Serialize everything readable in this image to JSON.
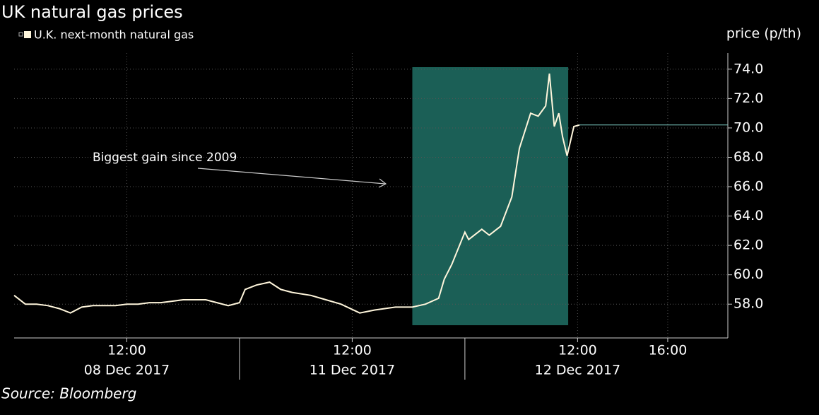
{
  "chart_data": {
    "type": "line",
    "title": "UK natural gas prices",
    "y_label": "price (p/th)",
    "source": "Source: Bloomberg",
    "annotation": "Biggest gain since 2009",
    "days": [
      "08 Dec 2017",
      "11 Dec 2017",
      "12 Dec 2017"
    ],
    "xlim": [
      "08 Dec 2017 07:00",
      "12 Dec 2017 18:40"
    ],
    "xticks": [
      {
        "value": "08 Dec 2017 12:00",
        "label": "12:00"
      },
      {
        "value": "11 Dec 2017 12:00",
        "label": "12:00"
      },
      {
        "value": "12 Dec 2017 12:00",
        "label": "12:00"
      },
      {
        "value": "12 Dec 2017 16:00",
        "label": "16:00"
      }
    ],
    "ylim": [
      55.7,
      75.1
    ],
    "yticks": [
      {
        "value": 58,
        "label": "58.0"
      },
      {
        "value": 60,
        "label": "60.0"
      },
      {
        "value": 62,
        "label": "62.0"
      },
      {
        "value": 64,
        "label": "64.0"
      },
      {
        "value": 66,
        "label": "66.0"
      },
      {
        "value": 68,
        "label": "68.0"
      },
      {
        "value": 70,
        "label": "70.0"
      },
      {
        "value": 72,
        "label": "72.0"
      },
      {
        "value": 74,
        "label": "74.0"
      }
    ],
    "grid": true,
    "highlight": {
      "x": [
        "11 Dec 2017 14:40",
        "12 Dec 2017 11:35"
      ],
      "color": "#1b5f56"
    },
    "series": [
      {
        "name": "U.K. next-month natural gas",
        "color": "#fff6dc",
        "x": [
          "08 Dec 2017 07:00",
          "08 Dec 2017 07:30",
          "08 Dec 2017 08:00",
          "08 Dec 2017 08:30",
          "08 Dec 2017 09:00",
          "08 Dec 2017 09:30",
          "08 Dec 2017 10:00",
          "08 Dec 2017 10:30",
          "08 Dec 2017 11:00",
          "08 Dec 2017 11:30",
          "08 Dec 2017 12:00",
          "08 Dec 2017 12:30",
          "08 Dec 2017 13:00",
          "08 Dec 2017 13:30",
          "08 Dec 2017 14:00",
          "08 Dec 2017 14:30",
          "08 Dec 2017 15:00",
          "08 Dec 2017 15:30",
          "08 Dec 2017 16:00",
          "08 Dec 2017 16:30",
          "08 Dec 2017 17:00",
          "11 Dec 2017 07:15",
          "11 Dec 2017 07:45",
          "11 Dec 2017 08:20",
          "11 Dec 2017 08:50",
          "11 Dec 2017 09:20",
          "11 Dec 2017 10:10",
          "11 Dec 2017 10:50",
          "11 Dec 2017 11:30",
          "11 Dec 2017 12:20",
          "11 Dec 2017 13:00",
          "11 Dec 2017 13:55",
          "11 Dec 2017 14:40",
          "11 Dec 2017 15:15",
          "11 Dec 2017 15:50",
          "11 Dec 2017 16:05",
          "11 Dec 2017 16:25",
          "11 Dec 2017 17:00",
          "12 Dec 2017 07:10",
          "12 Dec 2017 07:45",
          "12 Dec 2017 08:05",
          "12 Dec 2017 08:35",
          "12 Dec 2017 09:05",
          "12 Dec 2017 09:25",
          "12 Dec 2017 09:55",
          "12 Dec 2017 10:15",
          "12 Dec 2017 10:35",
          "12 Dec 2017 10:45",
          "12 Dec 2017 10:58",
          "12 Dec 2017 11:10",
          "12 Dec 2017 11:20",
          "12 Dec 2017 11:32",
          "12 Dec 2017 11:50",
          "12 Dec 2017 12:05"
        ],
        "values": [
          58.6,
          58.0,
          58.0,
          57.9,
          57.7,
          57.4,
          57.8,
          57.9,
          57.9,
          57.9,
          58.0,
          58.0,
          58.1,
          58.1,
          58.2,
          58.3,
          58.3,
          58.3,
          58.1,
          57.9,
          58.1,
          59.0,
          59.3,
          59.5,
          59.0,
          58.8,
          58.6,
          58.3,
          58.0,
          57.4,
          57.6,
          57.8,
          57.8,
          58.0,
          58.4,
          59.7,
          60.7,
          62.9,
          62.4,
          63.1,
          62.7,
          63.3,
          65.3,
          68.6,
          71.0,
          70.8,
          71.5,
          73.7,
          70.1,
          71.0,
          69.4,
          68.1,
          70.1,
          70.2
        ]
      }
    ]
  }
}
